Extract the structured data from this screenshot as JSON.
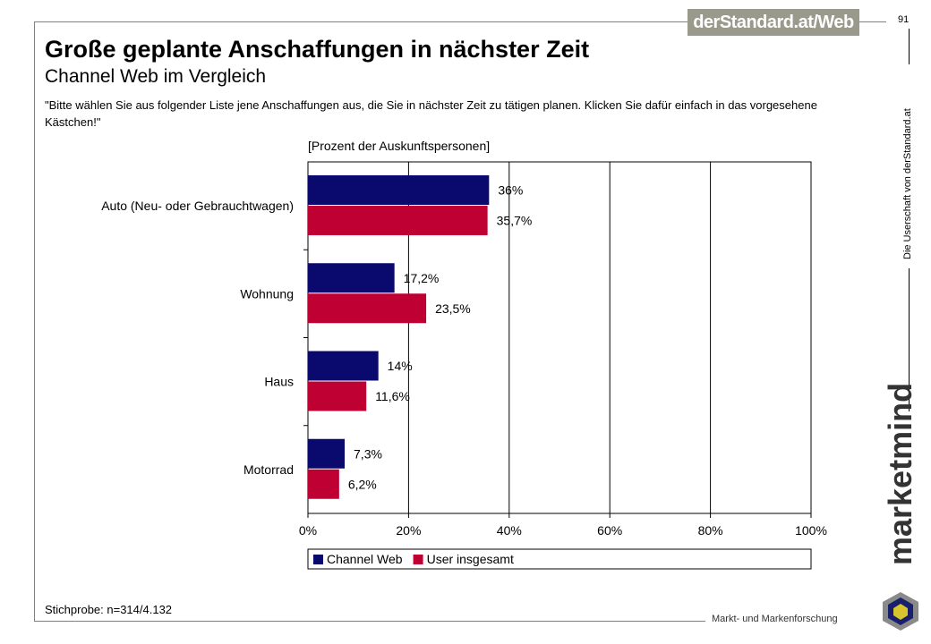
{
  "header": {
    "brand_logo": "derStandard.at/Web",
    "page_number": "91",
    "side_text": "Die Userschaft von derStandard.at",
    "company": "marketmind",
    "tagline": "Markt- und Markenforschung"
  },
  "slide": {
    "title": "Große geplante Anschaffungen in nächster Zeit",
    "subtitle": "Channel Web im Vergleich",
    "question": "\"Bitte wählen Sie aus folgender Liste jene Anschaffungen aus, die Sie in nächster Zeit zu tätigen planen. Klicken Sie dafür einfach in das vorgesehene Kästchen!\"",
    "footnote": "Stichprobe: n=314/4.132"
  },
  "chart_data": {
    "type": "bar",
    "orientation": "horizontal",
    "unit_label": "[Prozent der Auskunftspersonen]",
    "categories": [
      "Auto (Neu- oder Gebrauchtwagen)",
      "Wohnung",
      "Haus",
      "Motorrad"
    ],
    "series": [
      {
        "name": "Channel Web",
        "color": "#0a0a6e",
        "values": [
          36,
          17.2,
          14,
          7.3
        ],
        "labels": [
          "36%",
          "17,2%",
          "14%",
          "7,3%"
        ]
      },
      {
        "name": "User insgesamt",
        "color": "#be0032",
        "values": [
          35.7,
          23.5,
          11.6,
          6.2
        ],
        "labels": [
          "35,7%",
          "23,5%",
          "11,6%",
          "6,2%"
        ]
      }
    ],
    "xlim": [
      0,
      100
    ],
    "xticks": [
      0,
      20,
      40,
      60,
      80,
      100
    ],
    "xtick_labels": [
      "0%",
      "20%",
      "40%",
      "60%",
      "80%",
      "100%"
    ],
    "grid": true,
    "legend_position": "bottom"
  },
  "colors": {
    "logo_bg": "#9a9a8c",
    "series_1": "#0a0a6e",
    "series_2": "#be0032"
  }
}
